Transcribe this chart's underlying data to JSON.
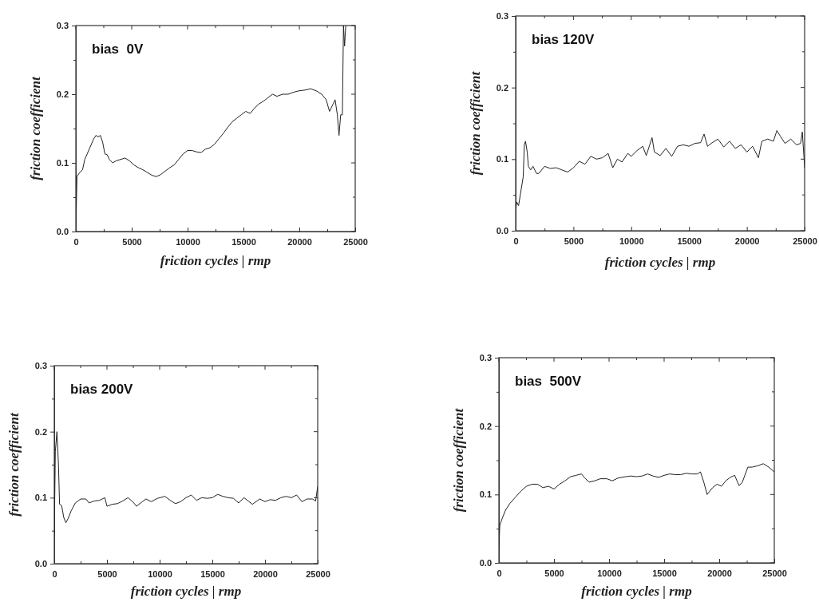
{
  "chart_data": [
    {
      "type": "line",
      "title": "bias  0V",
      "xlabel": "friction cycles | rmp",
      "ylabel": "friction coefficient",
      "xlim": [
        0,
        25000
      ],
      "ylim": [
        0,
        0.3
      ],
      "xticks": [
        0,
        {
          "value": 2500,
          "label": null
        },
        5000,
        {
          "value": 7500,
          "label": null
        },
        10000,
        {
          "value": 12500,
          "label": null
        },
        15000,
        {
          "value": 17500,
          "label": null
        },
        20000,
        {
          "value": 22500,
          "label": null
        },
        25000
      ],
      "yticks": [
        {
          "value": 0,
          "label": "0.0"
        },
        {
          "value": 0.05,
          "label": null
        },
        0.1,
        {
          "value": 0.15,
          "label": null
        },
        0.2,
        {
          "value": 0.25,
          "label": null
        },
        0.3
      ],
      "series": [
        {
          "color": "#222222",
          "x": [
            0,
            100,
            300,
            600,
            800,
            1200,
            1600,
            1800,
            2000,
            2200,
            2400,
            2600,
            2800,
            3000,
            3300,
            3600,
            4000,
            4400,
            4800,
            5200,
            5600,
            6000,
            6400,
            6800,
            7200,
            7600,
            8000,
            8400,
            8800,
            9200,
            9600,
            10000,
            10400,
            10800,
            11200,
            11600,
            12000,
            12400,
            12800,
            13200,
            13600,
            14000,
            14400,
            14800,
            15200,
            15600,
            16000,
            16400,
            16800,
            17200,
            17600,
            18000,
            18500,
            19000,
            19500,
            20000,
            20500,
            21000,
            21500,
            22000,
            22400,
            22700,
            23000,
            23200,
            23400,
            23550,
            23700,
            23850,
            23950,
            24050,
            24150
          ],
          "values": [
            0,
            0.08,
            0.085,
            0.09,
            0.105,
            0.12,
            0.135,
            0.14,
            0.138,
            0.14,
            0.13,
            0.113,
            0.112,
            0.105,
            0.1,
            0.103,
            0.105,
            0.107,
            0.103,
            0.097,
            0.093,
            0.09,
            0.086,
            0.082,
            0.08,
            0.083,
            0.088,
            0.093,
            0.097,
            0.105,
            0.113,
            0.118,
            0.118,
            0.116,
            0.115,
            0.12,
            0.122,
            0.127,
            0.135,
            0.143,
            0.152,
            0.16,
            0.165,
            0.17,
            0.175,
            0.172,
            0.18,
            0.186,
            0.19,
            0.195,
            0.2,
            0.197,
            0.2,
            0.2,
            0.203,
            0.205,
            0.206,
            0.208,
            0.205,
            0.2,
            0.192,
            0.175,
            0.185,
            0.192,
            0.17,
            0.14,
            0.17,
            0.17,
            0.3,
            0.27,
            0.3
          ]
        }
      ]
    },
    {
      "type": "line",
      "title": "bias 120V",
      "xlabel": "friction cycles | rmp",
      "ylabel": "friction coefficient",
      "xlim": [
        0,
        25000
      ],
      "ylim": [
        0,
        0.3
      ],
      "xticks": [
        0,
        {
          "value": 2500,
          "label": null
        },
        5000,
        {
          "value": 7500,
          "label": null
        },
        10000,
        {
          "value": 12500,
          "label": null
        },
        15000,
        {
          "value": 17500,
          "label": null
        },
        20000,
        {
          "value": 22500,
          "label": null
        },
        25000
      ],
      "yticks": [
        {
          "value": 0,
          "label": "0.0"
        },
        {
          "value": 0.05,
          "label": null
        },
        0.1,
        {
          "value": 0.15,
          "label": null
        },
        0.2,
        {
          "value": 0.25,
          "label": null
        },
        0.3
      ],
      "series": [
        {
          "color": "#222222",
          "x": [
            0,
            100,
            250,
            500,
            650,
            750,
            850,
            1000,
            1100,
            1300,
            1500,
            1800,
            2000,
            2500,
            3000,
            3500,
            4000,
            4500,
            5000,
            5500,
            6000,
            6500,
            7000,
            7500,
            8000,
            8400,
            8800,
            9200,
            9700,
            10000,
            10500,
            11000,
            11300,
            11800,
            12000,
            12500,
            13000,
            13500,
            14000,
            14500,
            15000,
            15500,
            16000,
            16300,
            16600,
            17000,
            17500,
            18000,
            18500,
            19000,
            19500,
            20000,
            20500,
            21000,
            21300,
            21800,
            22300,
            22600,
            22900,
            23300,
            23800,
            24300,
            24650,
            24800,
            25000
          ],
          "values": [
            0.03,
            0.04,
            0.035,
            0.06,
            0.075,
            0.12,
            0.125,
            0.11,
            0.09,
            0.085,
            0.09,
            0.08,
            0.08,
            0.09,
            0.087,
            0.088,
            0.085,
            0.082,
            0.088,
            0.097,
            0.093,
            0.104,
            0.1,
            0.102,
            0.108,
            0.088,
            0.1,
            0.096,
            0.108,
            0.104,
            0.112,
            0.118,
            0.105,
            0.13,
            0.11,
            0.105,
            0.115,
            0.104,
            0.118,
            0.12,
            0.118,
            0.122,
            0.123,
            0.135,
            0.118,
            0.123,
            0.128,
            0.117,
            0.125,
            0.115,
            0.12,
            0.11,
            0.118,
            0.102,
            0.125,
            0.128,
            0.125,
            0.14,
            0.132,
            0.122,
            0.128,
            0.12,
            0.122,
            0.138,
            0.088
          ]
        }
      ]
    },
    {
      "type": "line",
      "title": "bias 200V",
      "xlabel": "friction cycles | rmp",
      "ylabel": "friction coefficient",
      "xlim": [
        0,
        25000
      ],
      "ylim": [
        0,
        0.3
      ],
      "xticks": [
        0,
        {
          "value": 2500,
          "label": null
        },
        5000,
        {
          "value": 7500,
          "label": null
        },
        10000,
        {
          "value": 12500,
          "label": null
        },
        15000,
        {
          "value": 17500,
          "label": null
        },
        20000,
        {
          "value": 22500,
          "label": null
        },
        25000
      ],
      "yticks": [
        {
          "value": 0,
          "label": "0.0"
        },
        {
          "value": 0.05,
          "label": null
        },
        0.1,
        {
          "value": 0.15,
          "label": null
        },
        0.2,
        {
          "value": 0.25,
          "label": null
        },
        0.3
      ],
      "series": [
        {
          "color": "#222222",
          "x": [
            0,
            100,
            250,
            400,
            500,
            700,
            900,
            1100,
            1300,
            1600,
            2000,
            2500,
            3000,
            3300,
            3800,
            4300,
            4800,
            5000,
            5500,
            6000,
            6500,
            7000,
            7500,
            7800,
            8200,
            8700,
            9200,
            9800,
            10500,
            11000,
            11500,
            12000,
            12500,
            13000,
            13500,
            14000,
            14500,
            15000,
            15500,
            16000,
            16500,
            17000,
            17500,
            18000,
            18800,
            19500,
            20000,
            20500,
            21000,
            21500,
            22000,
            22500,
            23000,
            23500,
            24000,
            24500,
            24800,
            25000
          ],
          "values": [
            0.04,
            0.17,
            0.2,
            0.15,
            0.09,
            0.088,
            0.07,
            0.062,
            0.068,
            0.08,
            0.092,
            0.098,
            0.098,
            0.092,
            0.095,
            0.096,
            0.1,
            0.087,
            0.09,
            0.091,
            0.095,
            0.1,
            0.093,
            0.087,
            0.092,
            0.098,
            0.094,
            0.099,
            0.102,
            0.096,
            0.091,
            0.094,
            0.1,
            0.104,
            0.096,
            0.1,
            0.099,
            0.1,
            0.105,
            0.102,
            0.1,
            0.099,
            0.092,
            0.1,
            0.09,
            0.098,
            0.094,
            0.097,
            0.096,
            0.1,
            0.102,
            0.1,
            0.104,
            0.094,
            0.098,
            0.098,
            0.095,
            0.117
          ]
        }
      ]
    },
    {
      "type": "line",
      "title": "bias  500V",
      "xlabel": "friction cycles | rmp",
      "ylabel": "friction coefficient",
      "xlim": [
        0,
        25000
      ],
      "ylim": [
        0,
        0.3
      ],
      "xticks": [
        0,
        {
          "value": 2500,
          "label": null
        },
        5000,
        {
          "value": 7500,
          "label": null
        },
        10000,
        {
          "value": 12500,
          "label": null
        },
        15000,
        {
          "value": 17500,
          "label": null
        },
        20000,
        {
          "value": 22500,
          "label": null
        },
        25000
      ],
      "yticks": [
        {
          "value": 0,
          "label": "0.0"
        },
        {
          "value": 0.05,
          "label": null
        },
        0.1,
        {
          "value": 0.15,
          "label": null
        },
        0.2,
        {
          "value": 0.25,
          "label": null
        },
        0.3
      ],
      "series": [
        {
          "color": "#222222",
          "x": [
            0,
            80,
            300,
            600,
            1000,
            1500,
            2000,
            2500,
            3000,
            3500,
            4000,
            4500,
            5000,
            5500,
            6000,
            6500,
            7000,
            7500,
            7800,
            8200,
            8700,
            9200,
            9800,
            10300,
            10800,
            11500,
            12000,
            12500,
            13000,
            13500,
            14000,
            14500,
            15000,
            15500,
            16000,
            16500,
            17000,
            17500,
            18000,
            18300,
            18600,
            18900,
            19400,
            19800,
            20200,
            20600,
            21000,
            21400,
            21800,
            22100,
            22600,
            23000,
            23500,
            24000,
            24500,
            25000
          ],
          "values": [
            0.02,
            0.055,
            0.065,
            0.077,
            0.087,
            0.096,
            0.105,
            0.112,
            0.115,
            0.115,
            0.11,
            0.112,
            0.108,
            0.115,
            0.12,
            0.126,
            0.128,
            0.13,
            0.124,
            0.118,
            0.12,
            0.123,
            0.123,
            0.12,
            0.124,
            0.126,
            0.127,
            0.126,
            0.127,
            0.13,
            0.127,
            0.125,
            0.128,
            0.13,
            0.129,
            0.129,
            0.131,
            0.13,
            0.13,
            0.133,
            0.118,
            0.1,
            0.11,
            0.115,
            0.112,
            0.12,
            0.125,
            0.128,
            0.113,
            0.118,
            0.14,
            0.14,
            0.142,
            0.145,
            0.14,
            0.133
          ]
        }
      ]
    }
  ]
}
